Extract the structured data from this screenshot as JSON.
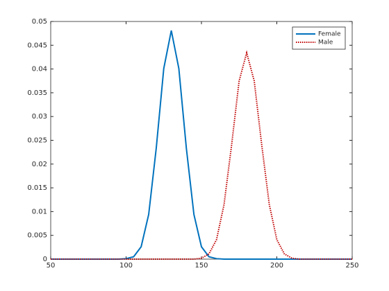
{
  "chart_data": {
    "type": "line",
    "x": [
      50,
      55,
      60,
      65,
      70,
      75,
      80,
      85,
      90,
      95,
      100,
      105,
      110,
      115,
      120,
      125,
      130,
      135,
      140,
      145,
      150,
      155,
      160,
      165,
      170,
      175,
      180,
      185,
      190,
      195,
      200,
      205,
      210,
      215,
      220,
      225,
      230,
      235,
      240,
      245,
      250
    ],
    "series": [
      {
        "name": "Female",
        "color": "#0072bd",
        "dash": "solid",
        "values": [
          0,
          0,
          0,
          0,
          0,
          0,
          0,
          0,
          0,
          0,
          0.0001,
          0.0005,
          0.0026,
          0.0094,
          0.0233,
          0.0401,
          0.0481,
          0.0401,
          0.0233,
          0.0094,
          0.0026,
          0.0005,
          0.0001,
          0,
          0,
          0,
          0,
          0,
          0,
          0,
          0,
          0,
          0,
          0,
          0,
          0,
          0,
          0,
          0,
          0,
          0
        ]
      },
      {
        "name": "Male",
        "color": "#c00000",
        "dash": "dotted",
        "values": [
          0,
          0,
          0,
          0,
          0,
          0,
          0,
          0,
          0,
          0,
          0,
          0,
          0,
          0,
          0,
          0,
          0,
          0,
          0,
          0,
          0.0002,
          0.0011,
          0.0041,
          0.0115,
          0.024,
          0.0375,
          0.0434,
          0.0375,
          0.024,
          0.0115,
          0.0041,
          0.0011,
          0.0002,
          0,
          0,
          0,
          0,
          0,
          0,
          0,
          0
        ]
      }
    ],
    "xlim": [
      50,
      250
    ],
    "xticks": [
      50,
      100,
      150,
      200,
      250
    ],
    "ylim": [
      0,
      0.05
    ],
    "yticks": [
      0,
      0.005,
      0.01,
      0.015,
      0.02,
      0.025,
      0.03,
      0.035,
      0.04,
      0.045,
      0.05
    ],
    "grid": false,
    "legend": "top-right"
  }
}
